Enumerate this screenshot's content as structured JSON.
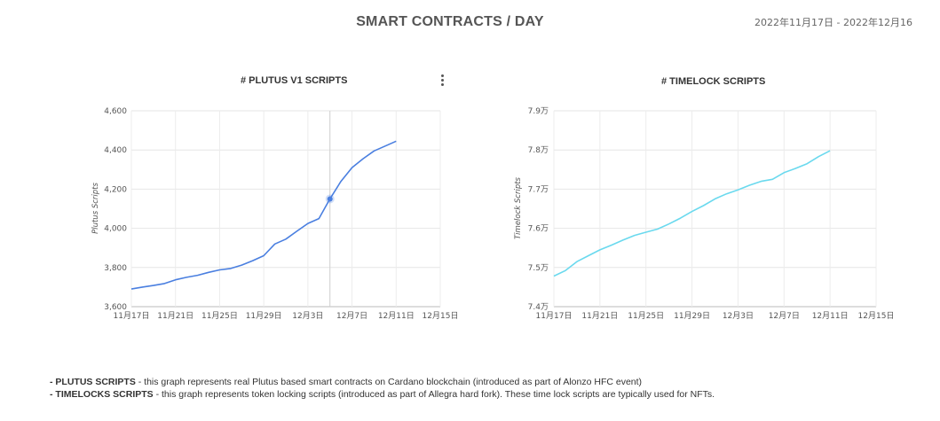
{
  "header": {
    "title": "SMART CONTRACTS / DAY",
    "date_range": "2022年11月17日 - 2022年12月16"
  },
  "chart_data": [
    {
      "type": "line",
      "title": "# PLUTUS V1 SCRIPTS",
      "xlabel": "",
      "ylabel": "Plutus Scripts",
      "x_ticks": [
        "11月17日",
        "11月21日",
        "11月25日",
        "11月29日",
        "12月3日",
        "12月7日",
        "12月11日",
        "12月15日"
      ],
      "y_ticks": [
        "3,600",
        "3,800",
        "4,000",
        "4,200",
        "4,400",
        "4,600"
      ],
      "ylim": [
        3600,
        4600
      ],
      "xlim_days": [
        0,
        28
      ],
      "color": "#4a7fe0",
      "highlight_point": {
        "day": 18,
        "value": 4150
      },
      "series": [
        {
          "x_days": [
            0,
            1,
            2,
            3,
            4,
            5,
            6,
            7,
            8,
            9,
            10,
            11,
            12,
            13,
            14,
            15,
            16,
            17,
            18,
            19,
            20,
            21,
            22,
            23,
            24
          ],
          "values": [
            3690,
            3700,
            3708,
            3718,
            3737,
            3750,
            3760,
            3775,
            3788,
            3795,
            3812,
            3835,
            3860,
            3920,
            3945,
            3985,
            4025,
            4050,
            4150,
            4240,
            4310,
            4355,
            4395,
            4420,
            4445
          ]
        }
      ]
    },
    {
      "type": "line",
      "title": "# TIMELOCK SCRIPTS",
      "xlabel": "",
      "ylabel": "Timelock Scripts",
      "x_ticks": [
        "11月17日",
        "11月21日",
        "11月25日",
        "11月29日",
        "12月3日",
        "12月7日",
        "12月11日",
        "12月15日"
      ],
      "y_ticks": [
        "7.4万",
        "7.5万",
        "7.6万",
        "7.7万",
        "7.8万",
        "7.9万"
      ],
      "ylim": [
        74000,
        79000
      ],
      "xlim_days": [
        0,
        28
      ],
      "color": "#6ad9ee",
      "series": [
        {
          "x_days": [
            0,
            1,
            2,
            3,
            4,
            5,
            6,
            7,
            8,
            9,
            10,
            11,
            12,
            13,
            14,
            15,
            16,
            17,
            18,
            19,
            20,
            21,
            22,
            23,
            24
          ],
          "values": [
            74780,
            74920,
            75150,
            75300,
            75450,
            75570,
            75700,
            75820,
            75900,
            75980,
            76110,
            76260,
            76430,
            76580,
            76750,
            76880,
            76980,
            77100,
            77200,
            77250,
            77420,
            77530,
            77650,
            77830,
            77980
          ]
        }
      ]
    }
  ],
  "footnotes": [
    {
      "bold": "- PLUTUS SCRIPTS",
      "text": " - this graph represents real Plutus based smart contracts on Cardano blockchain (introduced as part of Alonzo HFC event)"
    },
    {
      "bold": "- TIMELOCKS SCRIPTS",
      "text": " - this graph represents token locking scripts (introduced as part of Allegra hard fork). These time lock scripts are typically used for NFTs."
    }
  ]
}
